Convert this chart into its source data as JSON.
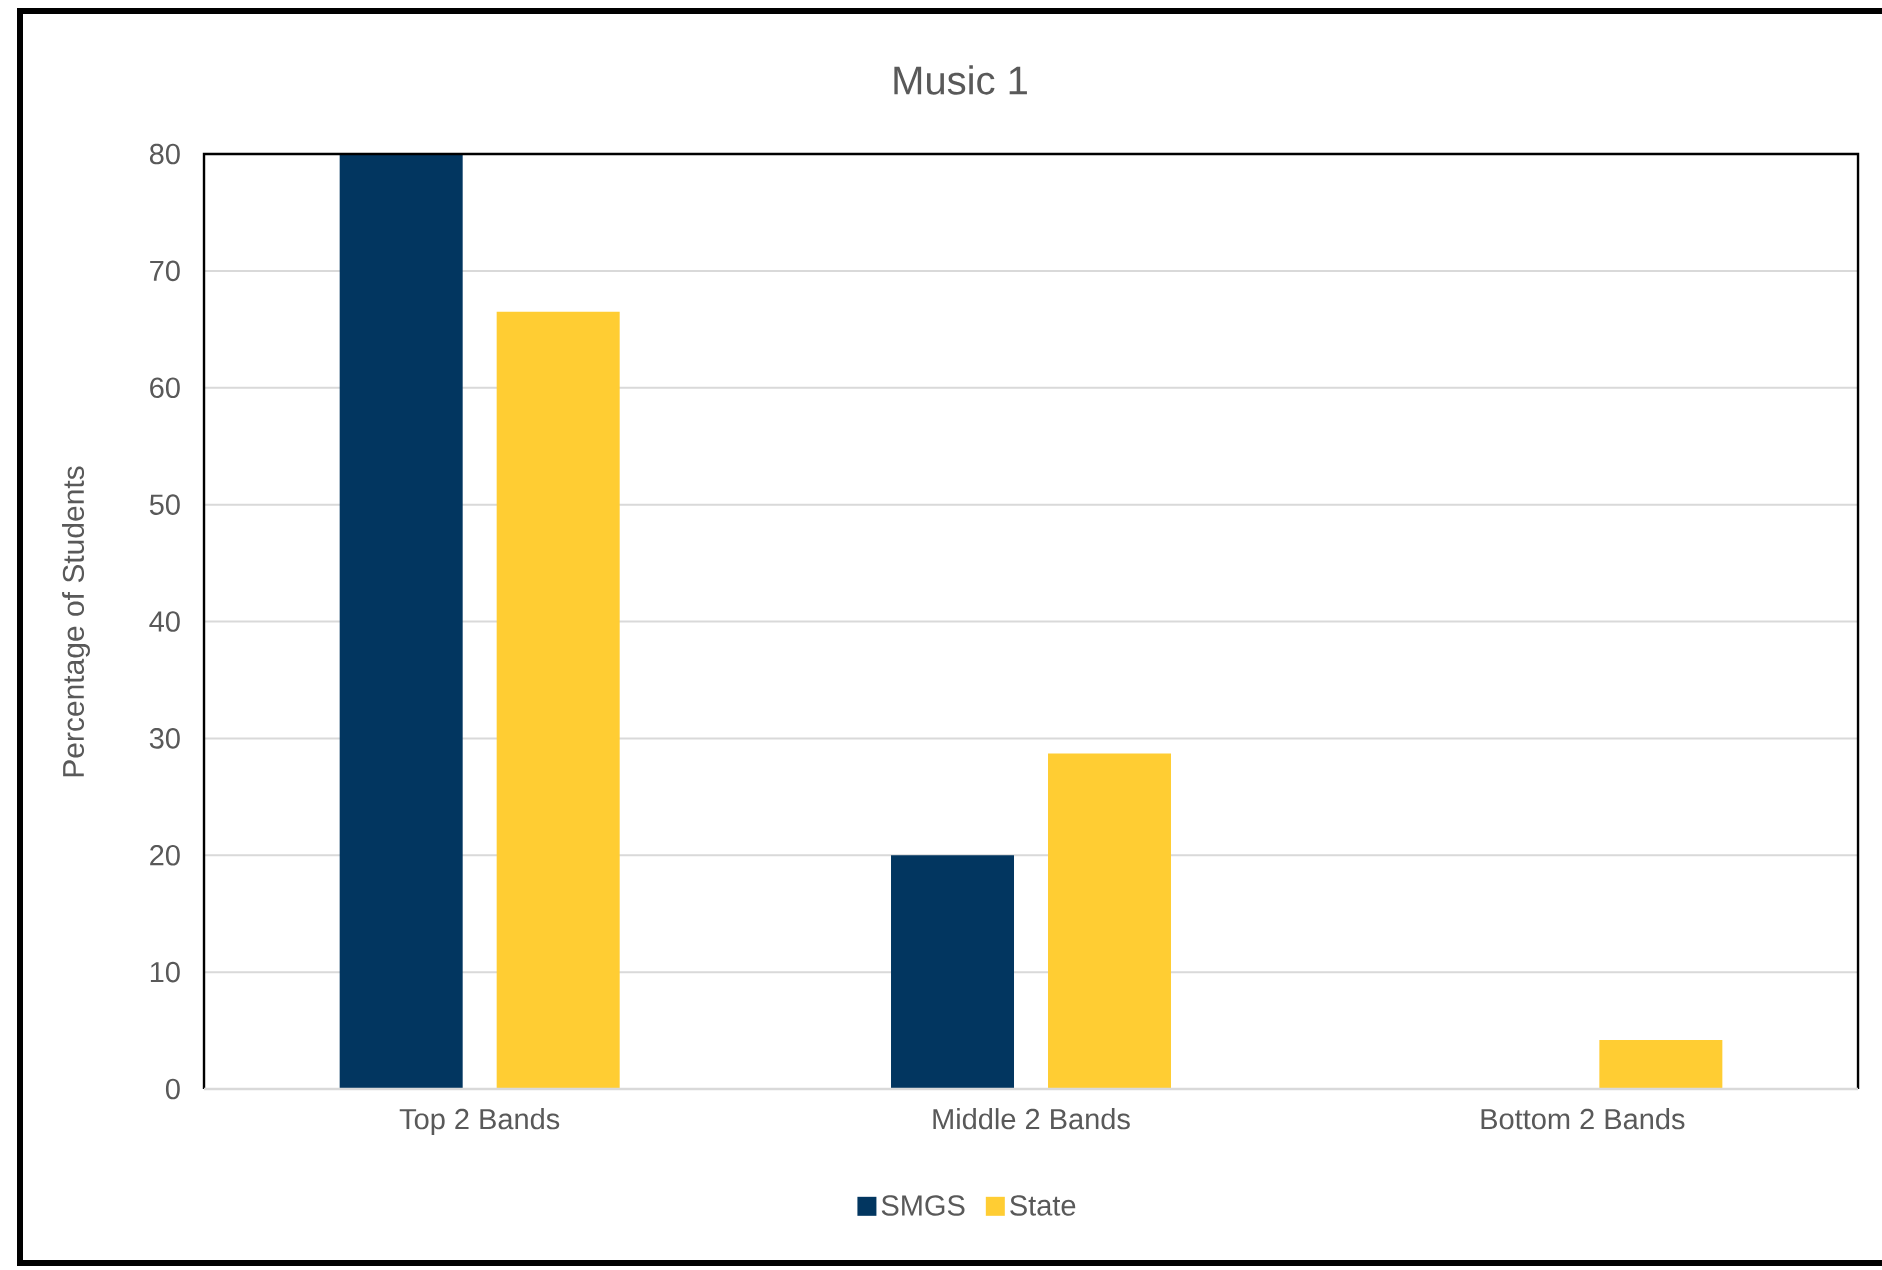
{
  "chart_data": {
    "type": "bar",
    "title": "Music 1",
    "ylabel": "Percentage of Students",
    "categories": [
      "Top 2 Bands",
      "Middle 2 Bands",
      "Bottom 2 Bands"
    ],
    "series": [
      {
        "name": "SMGS",
        "color": "#023660",
        "values": [
          80,
          20,
          0
        ]
      },
      {
        "name": "State",
        "color": "#ffcd33",
        "values": [
          66.5,
          28.7,
          4.2
        ]
      }
    ],
    "ylim": [
      0,
      80
    ],
    "yticks": [
      0,
      10,
      20,
      30,
      40,
      50,
      60,
      70,
      80
    ],
    "grid": "y",
    "legend": "bottom"
  }
}
